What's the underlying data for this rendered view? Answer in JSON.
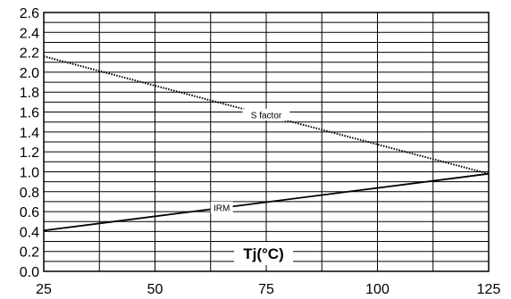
{
  "chart_data": {
    "type": "line",
    "title": "",
    "xlabel": "Tj(°C)",
    "ylabel": "",
    "xlim": [
      25,
      125
    ],
    "ylim": [
      0.0,
      2.6
    ],
    "x_ticks": [
      "25",
      "50",
      "75",
      "100",
      "125"
    ],
    "y_ticks": [
      "0.0",
      "0.2",
      "0.4",
      "0.6",
      "0.8",
      "1.0",
      "1.2",
      "1.4",
      "1.6",
      "1.8",
      "2.0",
      "2.2",
      "2.4",
      "2.6"
    ],
    "grid": true,
    "series": [
      {
        "name": "S factor",
        "style": "dotted",
        "x": [
          25,
          125
        ],
        "y": [
          2.16,
          0.98
        ]
      },
      {
        "name": "IRM",
        "style": "solid",
        "x": [
          25,
          125
        ],
        "y": [
          0.41,
          0.98
        ]
      }
    ]
  }
}
